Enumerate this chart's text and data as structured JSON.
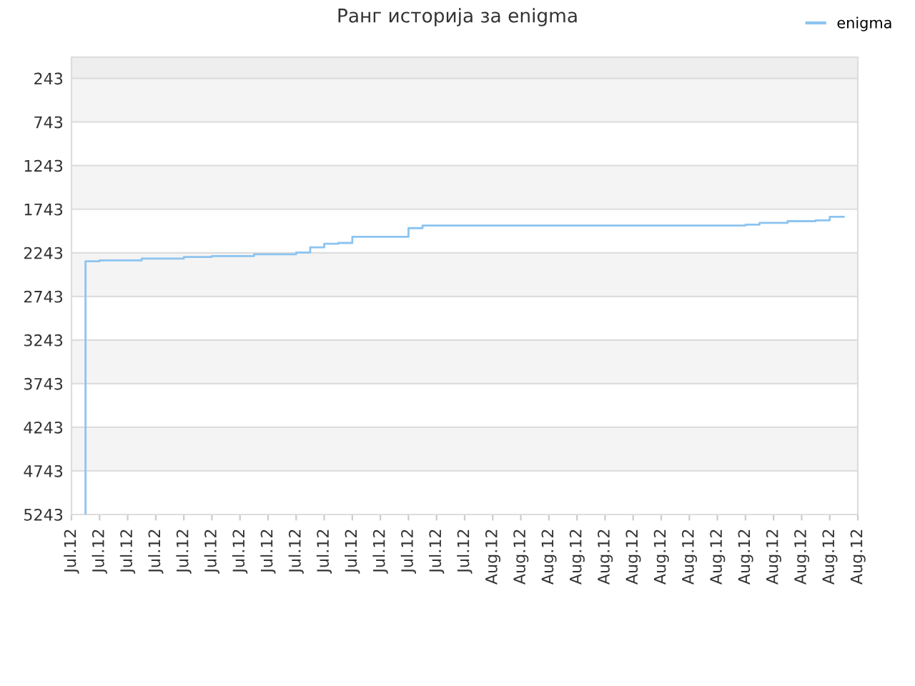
{
  "chart_data": {
    "type": "step",
    "title": "Ранг историја за enigma",
    "categories": [
      "Jul.12",
      null,
      "Jul.12",
      null,
      "Jul.12",
      null,
      "Jul.12",
      null,
      "Jul.12",
      null,
      "Jul.12",
      null,
      "Jul.12",
      null,
      "Jul.12",
      null,
      "Jul.12",
      null,
      "Jul.12",
      null,
      "Jul.12",
      null,
      "Jul.12",
      null,
      "Jul.12",
      null,
      "Jul.12",
      null,
      "Jul.12",
      null,
      "Aug.12",
      null,
      "Aug.12",
      null,
      "Aug.12",
      null,
      "Aug.12",
      null,
      "Aug.12",
      null,
      "Aug.12",
      null,
      "Aug.12",
      null,
      "Aug.12",
      null,
      "Aug.12",
      null,
      "Aug.12",
      null,
      "Aug.12",
      null,
      "Aug.12",
      null,
      "Aug.12",
      null,
      "Aug.12"
    ],
    "series": [
      {
        "name": "enigma",
        "color": "#8cc4f0",
        "values": [
          null,
          5243,
          2340,
          2330,
          2330,
          2330,
          2310,
          2310,
          2310,
          2290,
          2290,
          2280,
          2280,
          2280,
          2260,
          2260,
          2260,
          2240,
          2180,
          2140,
          2130,
          2060,
          2060,
          2060,
          2060,
          1960,
          1930,
          1930,
          1930,
          1930,
          1930,
          1930,
          1930,
          1930,
          1930,
          1930,
          1930,
          1930,
          1930,
          1930,
          1930,
          1930,
          1930,
          1930,
          1930,
          1930,
          1930,
          1930,
          1930,
          1920,
          1900,
          1900,
          1880,
          1880,
          1870,
          1830,
          null
        ]
      }
    ],
    "ylim": [
      5243,
      0
    ],
    "yticks": [
      243,
      743,
      1243,
      1743,
      2243,
      2743,
      3243,
      3743,
      4243,
      4743,
      5243
    ],
    "bands": [
      {
        "axis": "y",
        "from": 0,
        "to": 243,
        "color": "#eeeeee"
      },
      {
        "axis": "y",
        "from": 243,
        "to": 743,
        "color": "#f4f4f4"
      },
      {
        "axis": "y",
        "from": 1243,
        "to": 1743,
        "color": "#f4f4f4"
      },
      {
        "axis": "y",
        "from": 2243,
        "to": 2743,
        "color": "#f4f4f4"
      },
      {
        "axis": "y",
        "from": 3243,
        "to": 3743,
        "color": "#f4f4f4"
      },
      {
        "axis": "y",
        "from": 4243,
        "to": 4743,
        "color": "#f4f4f4"
      }
    ],
    "grid": "y",
    "legend": "top right",
    "marker": "none",
    "line_style": "solid"
  }
}
